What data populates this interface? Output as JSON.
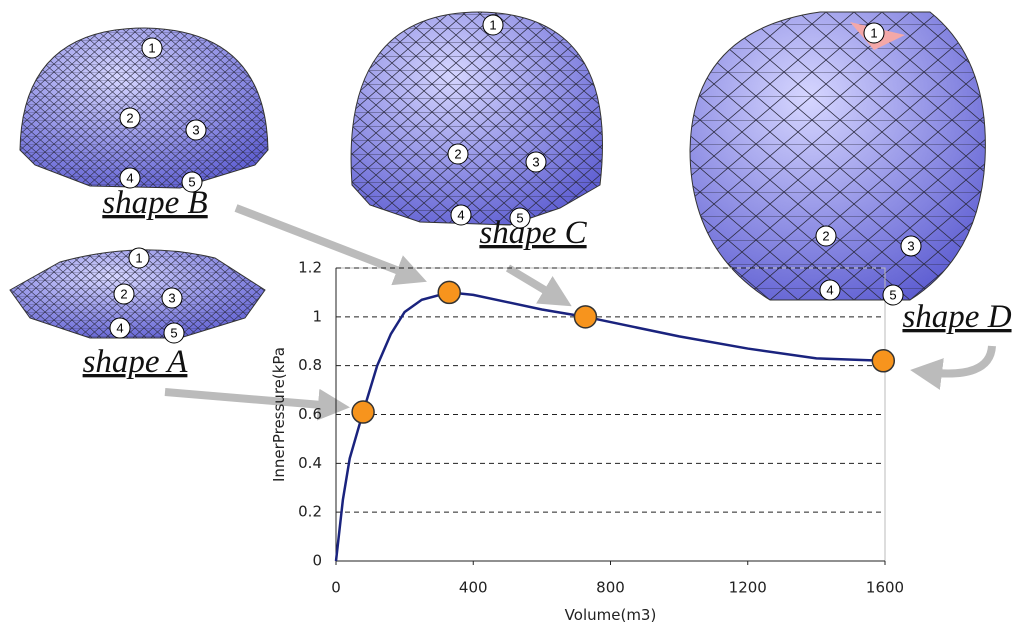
{
  "chart_data": {
    "type": "line",
    "x_label": "Volume(m3)",
    "y_label": "InnerPressure(kPa",
    "xlim": [
      0,
      1600
    ],
    "xticks": [
      0,
      400,
      800,
      1200,
      1600
    ],
    "ylim": [
      0,
      1.2
    ],
    "yticks": [
      0,
      0.2,
      0.4,
      0.6,
      0.8,
      1,
      1.2
    ],
    "grid": true,
    "series": [
      {
        "color": "#1a237e",
        "x": [
          0,
          20,
          40,
          79,
          120,
          160,
          200,
          250,
          330,
          400,
          500,
          600,
          727,
          1000,
          1200,
          1400,
          1595
        ],
        "values": [
          0,
          0.25,
          0.42,
          0.61,
          0.8,
          0.93,
          1.02,
          1.07,
          1.1,
          1.09,
          1.06,
          1.03,
          1.0,
          0.92,
          0.87,
          0.83,
          0.82
        ]
      }
    ],
    "markers": {
      "color": "#f7941d",
      "x": [
        79,
        330,
        727,
        1595
      ],
      "values": [
        0.61,
        1.1,
        1.0,
        0.82
      ]
    },
    "annotations": [
      {
        "label": "shape A",
        "numbers": [
          1,
          2,
          3,
          4,
          5
        ]
      },
      {
        "label": "shape B",
        "numbers": [
          1,
          2,
          3,
          4,
          5
        ]
      },
      {
        "label": "shape C",
        "numbers": [
          1,
          2,
          3,
          4,
          5
        ]
      },
      {
        "label": "shape D",
        "numbers": [
          1,
          2,
          3,
          4,
          5
        ]
      }
    ]
  }
}
